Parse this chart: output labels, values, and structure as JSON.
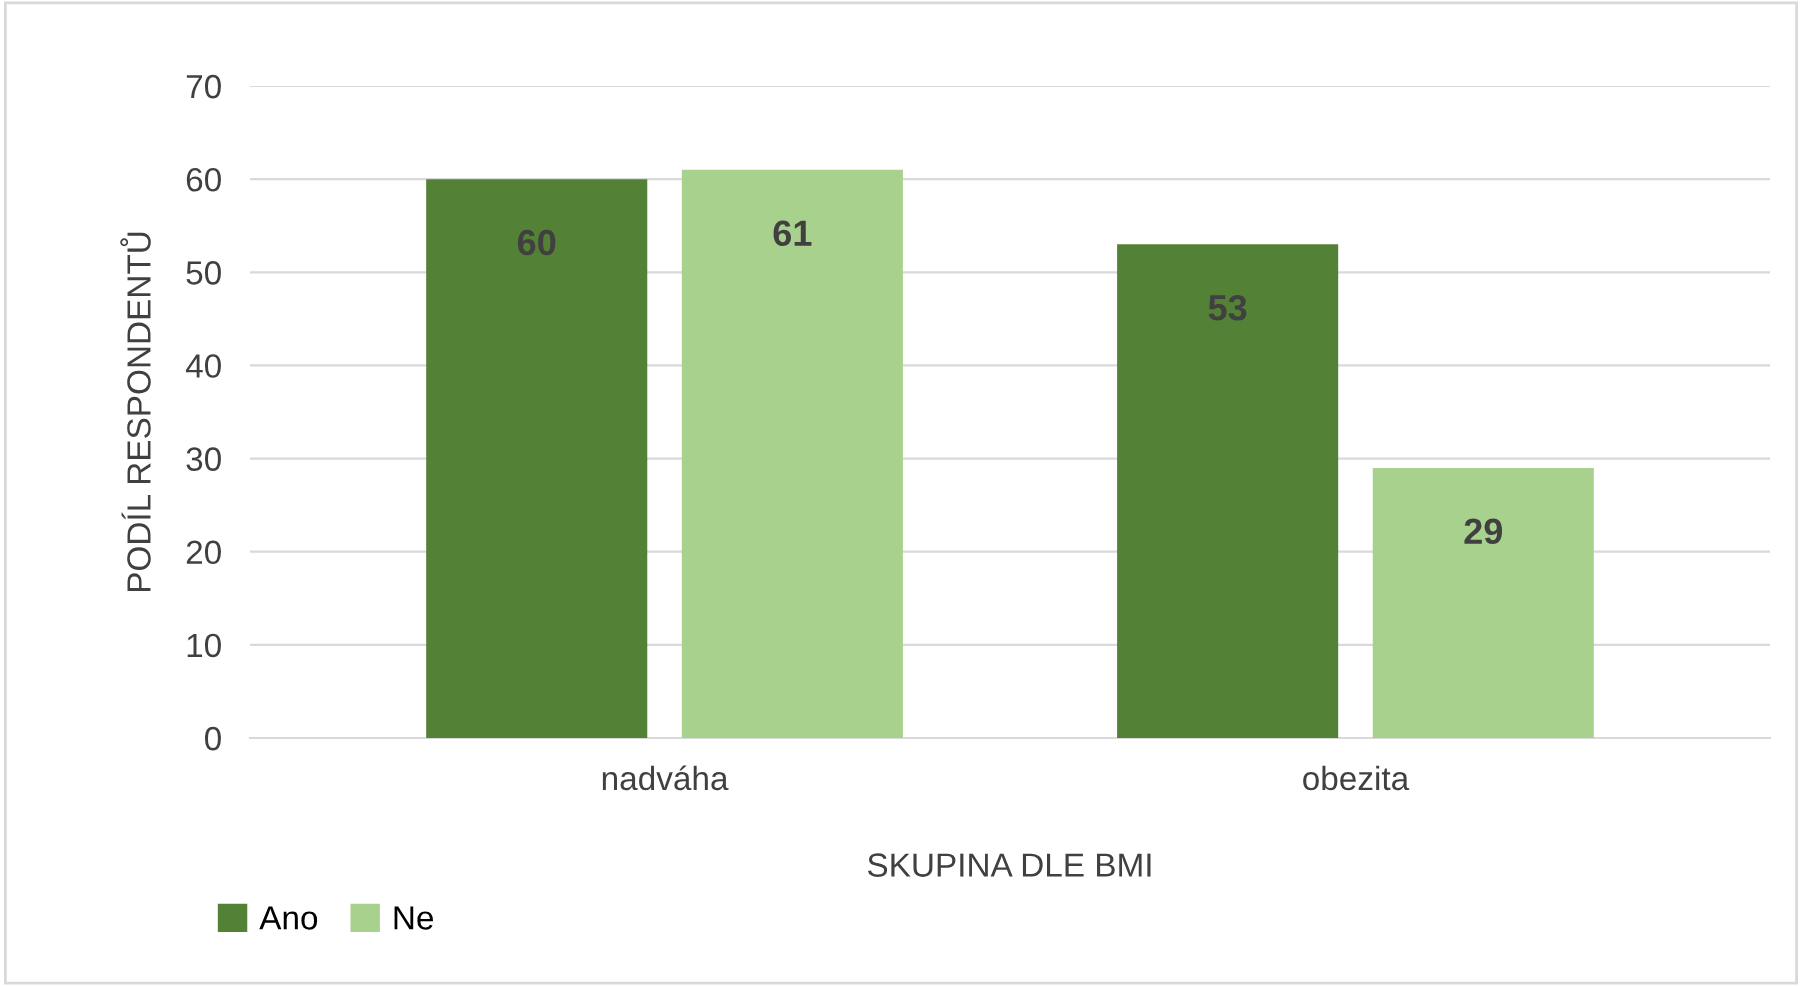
{
  "chart_data": {
    "type": "bar",
    "xlabel": "SKUPINA DLE BMI",
    "ylabel": "PODÍL RESPONDENTŮ",
    "categories": [
      "nadváha",
      "obezita"
    ],
    "series": [
      {
        "name": "Ano",
        "color": "#538135",
        "values": [
          60,
          53
        ]
      },
      {
        "name": "Ne",
        "color": "#a9d18e",
        "values": [
          61,
          29
        ]
      }
    ],
    "ylim": [
      0,
      70
    ],
    "yticks": [
      0,
      10,
      20,
      30,
      40,
      50,
      60,
      70
    ],
    "grid": "y",
    "legend": "bottom left",
    "data_labels": true
  }
}
